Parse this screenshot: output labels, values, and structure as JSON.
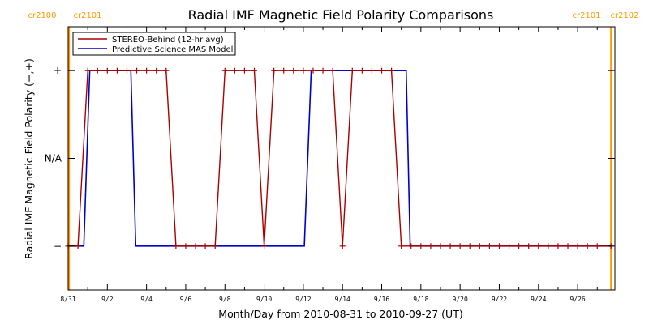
{
  "chart_data": {
    "type": "line",
    "title": "Radial IMF Magnetic Field Polarity Comparisons",
    "xlabel": "Month/Day from 2010-08-31 to 2010-09-27 (UT)",
    "ylabel": "Radial IMF Magnetic Field Polarity (−,+)",
    "xlim": [
      0,
      27.9
    ],
    "ylim": [
      -1.5,
      1.5
    ],
    "x_ticks": [
      {
        "x": 0,
        "label": "8/31"
      },
      {
        "x": 2,
        "label": "9/2"
      },
      {
        "x": 4,
        "label": "9/4"
      },
      {
        "x": 6,
        "label": "9/6"
      },
      {
        "x": 8,
        "label": "9/8"
      },
      {
        "x": 10,
        "label": "9/10"
      },
      {
        "x": 12,
        "label": "9/12"
      },
      {
        "x": 14,
        "label": "9/14"
      },
      {
        "x": 16,
        "label": "9/16"
      },
      {
        "x": 18,
        "label": "9/18"
      },
      {
        "x": 20,
        "label": "9/20"
      },
      {
        "x": 22,
        "label": "9/22"
      },
      {
        "x": 24,
        "label": "9/24"
      },
      {
        "x": 26,
        "label": "9/26"
      }
    ],
    "y_ticks": [
      {
        "y": 1,
        "label": "+"
      },
      {
        "y": 0,
        "label": "N/A"
      },
      {
        "y": -1,
        "label": "−"
      }
    ],
    "carrington_markers": [
      {
        "x": 0.05,
        "left_label": "cr2100",
        "right_label": "cr2101"
      },
      {
        "x": 27.7,
        "left_label": "cr2101",
        "right_label": "cr2102"
      }
    ],
    "legend": {
      "position": "top-left"
    },
    "series": [
      {
        "name": "STEREO-Behind (12-hr avg)",
        "color": "#aa0000",
        "markers": true,
        "x": [
          0,
          0.5,
          1.0,
          1.5,
          2.0,
          2.5,
          3.0,
          3.5,
          4.0,
          4.5,
          5.0,
          5.5,
          6.0,
          6.5,
          7.0,
          7.5,
          8.0,
          8.5,
          9.0,
          9.5,
          10.0,
          10.5,
          11.0,
          11.5,
          12.0,
          12.5,
          13.0,
          13.5,
          14.0,
          14.5,
          15.0,
          15.5,
          16.0,
          16.5,
          17.0,
          17.5,
          18.0,
          18.5,
          19.0,
          19.5,
          20.0,
          20.5,
          21.0,
          21.5,
          22.0,
          22.5,
          23.0,
          23.5,
          24.0,
          24.5,
          25.0,
          25.5,
          26.0,
          26.5,
          27.0,
          27.7
        ],
        "values": [
          -1,
          -1,
          1,
          1,
          1,
          1,
          1,
          1,
          1,
          1,
          1,
          -1,
          -1,
          -1,
          -1,
          -1,
          1,
          1,
          1,
          1,
          -1,
          1,
          1,
          1,
          1,
          1,
          1,
          1,
          -1,
          1,
          1,
          1,
          1,
          1,
          -1,
          -1,
          -1,
          -1,
          -1,
          -1,
          -1,
          -1,
          -1,
          -1,
          -1,
          -1,
          -1,
          -1,
          -1,
          -1,
          -1,
          -1,
          -1,
          -1,
          -1,
          -1
        ]
      },
      {
        "name": "Predictive Science MAS Model",
        "color": "#0000cc",
        "markers": false,
        "step": [
          [
            0,
            -1
          ],
          [
            0.8,
            -1
          ],
          [
            1.1,
            1
          ],
          [
            3.2,
            1
          ],
          [
            3.45,
            -1
          ],
          [
            12.05,
            -1
          ],
          [
            12.4,
            1
          ],
          [
            17.25,
            1
          ],
          [
            17.45,
            -1
          ],
          [
            27.7,
            -1
          ]
        ]
      }
    ]
  }
}
